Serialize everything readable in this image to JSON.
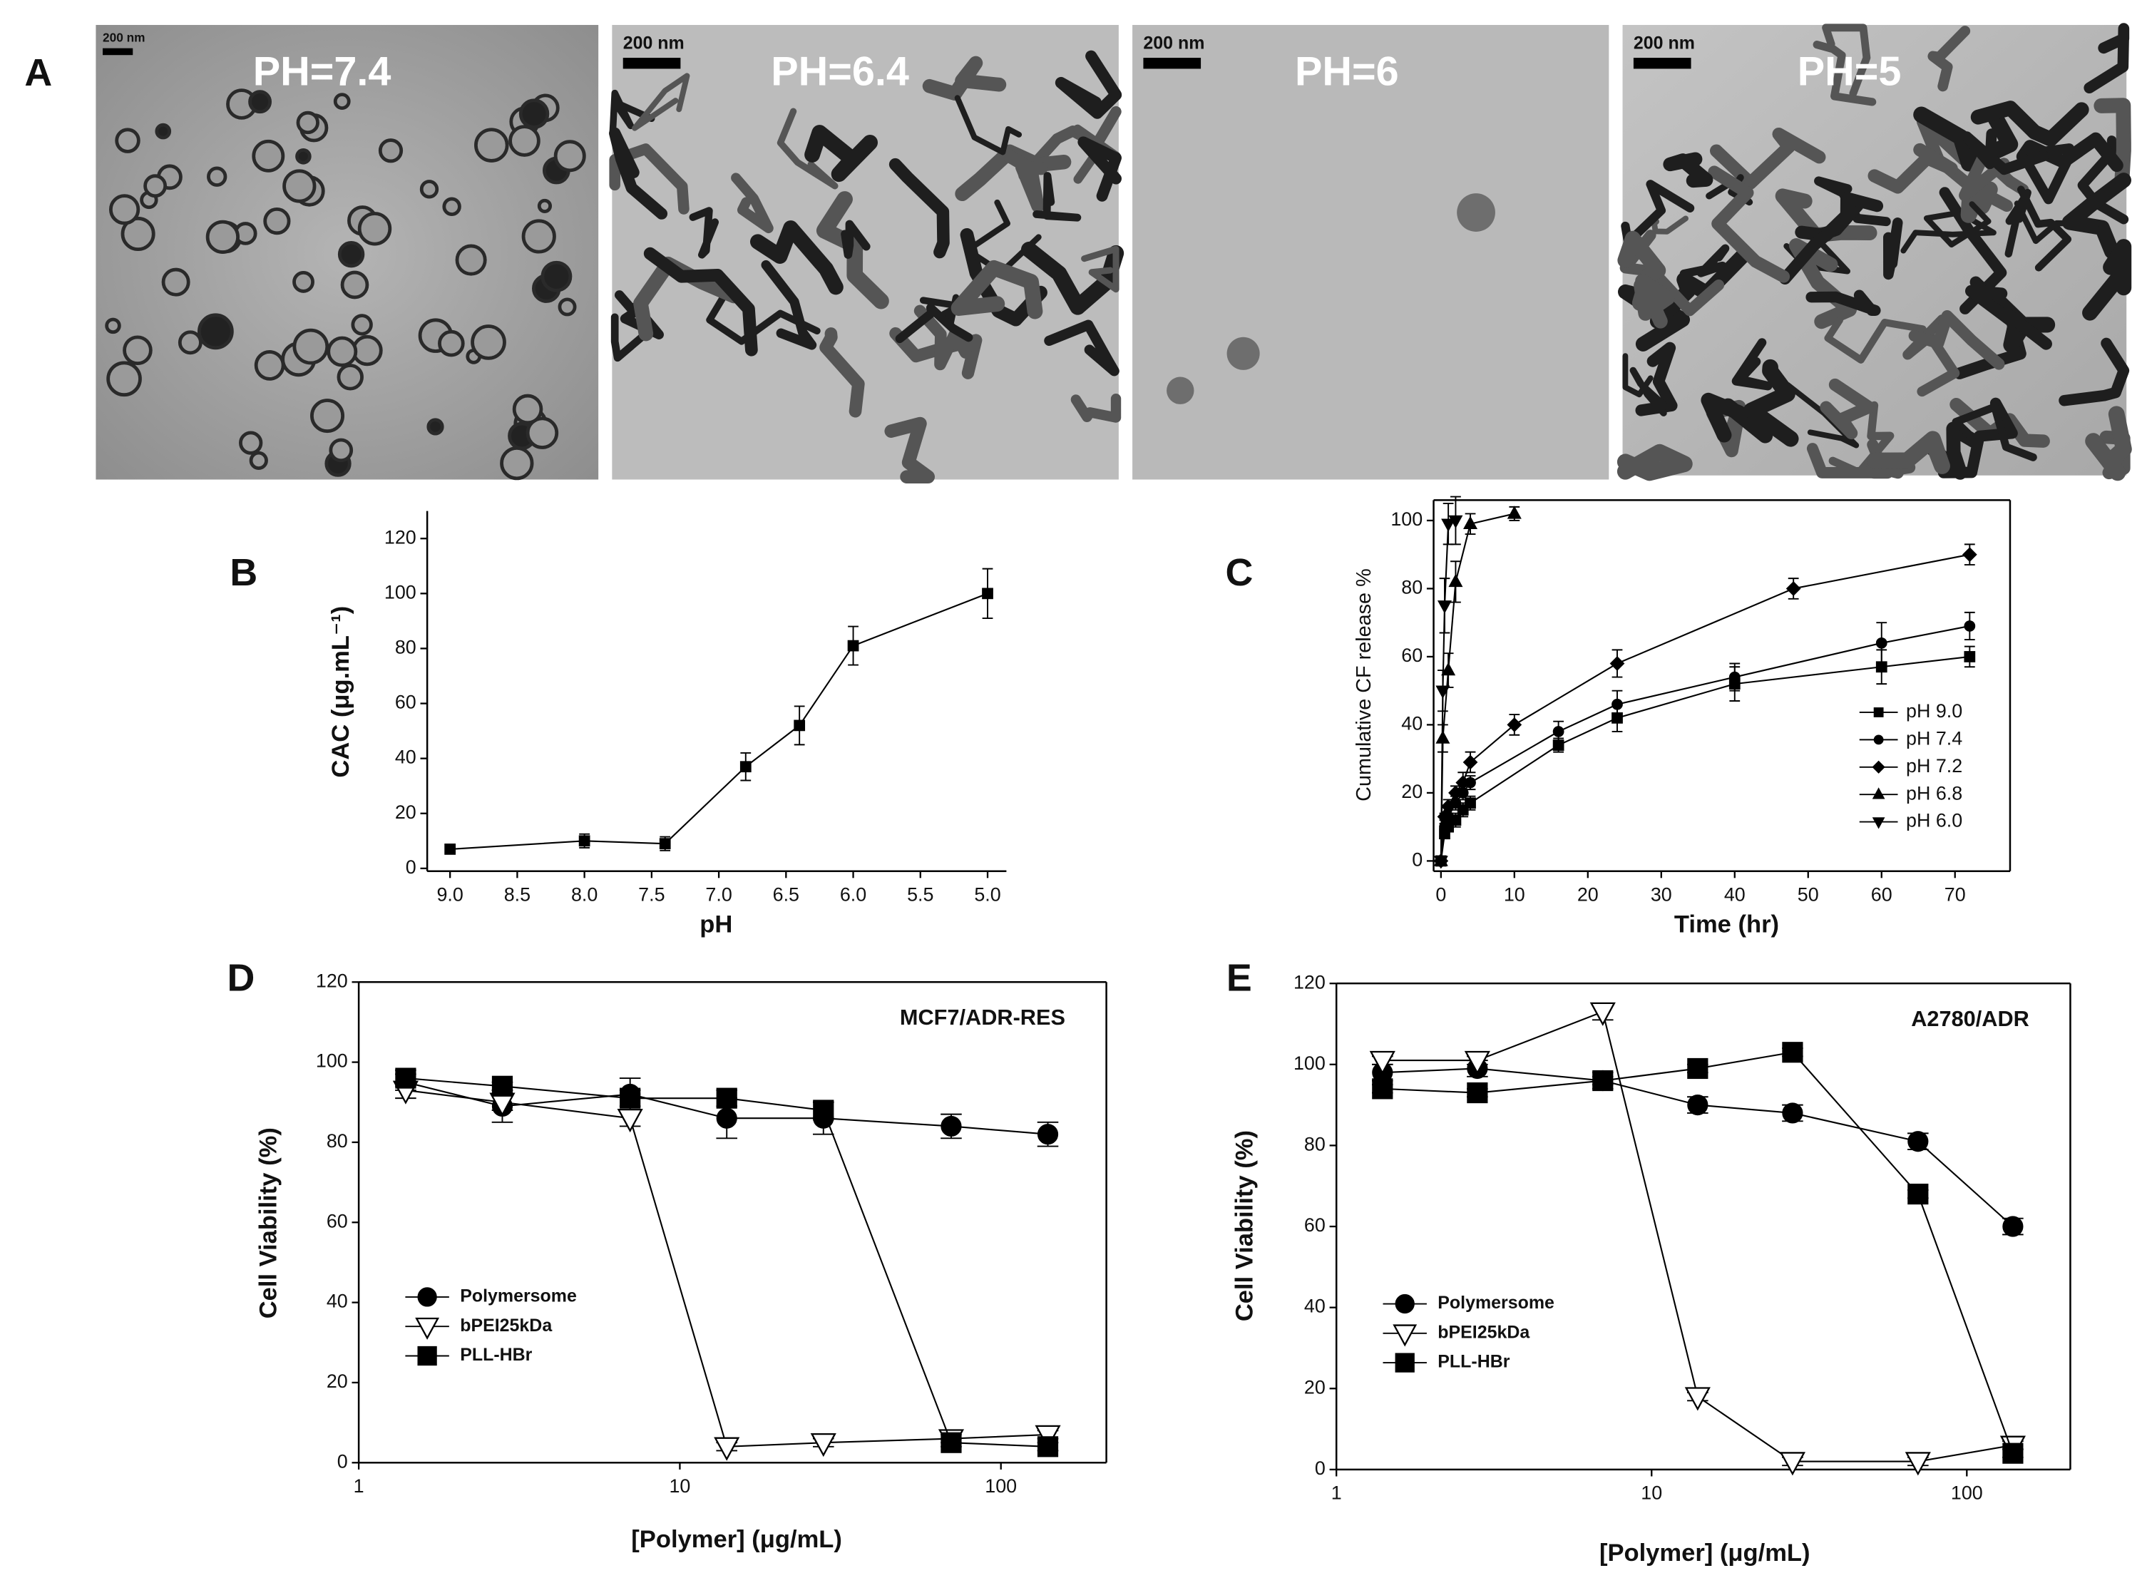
{
  "panel_a": {
    "label": "A",
    "images": [
      {
        "title": "PH=7.4",
        "scale_bar": "200 nm"
      },
      {
        "title": "PH=6.4",
        "scale_bar": "200 nm"
      },
      {
        "title": "PH=6",
        "scale_bar": "200 nm"
      },
      {
        "title": "PH=5",
        "scale_bar": "200 nm"
      }
    ]
  },
  "chart_data": [
    {
      "type": "line",
      "panel_label": "B",
      "x_label": "pH",
      "y_label": "CAC (μg.mL⁻¹)",
      "xlim": [
        9.17,
        4.86
      ],
      "ylim": [
        -1,
        130
      ],
      "xticks": [
        {
          "value": 9,
          "label": "9.0"
        },
        8.5,
        {
          "value": 8,
          "label": "8.0"
        },
        7.5,
        {
          "value": 7,
          "label": "7.0"
        },
        6.5,
        {
          "value": 6,
          "label": "6.0"
        },
        5.5,
        {
          "value": 5,
          "label": "5.0"
        }
      ],
      "yticks": [
        0,
        20,
        40,
        60,
        80,
        100,
        120
      ],
      "series": [
        {
          "color": "#000000",
          "marker": "square",
          "x": [
            9.0,
            8.0,
            7.4,
            6.8,
            6.4,
            6.0,
            5.0
          ],
          "values": [
            7,
            10,
            9,
            37,
            52,
            81,
            100
          ],
          "errors": [
            1.5,
            2.5,
            2.5,
            5,
            7,
            7,
            9
          ]
        }
      ]
    },
    {
      "type": "line",
      "panel_label": "C",
      "x_label": "Time (hr)",
      "y_label": "Cumulative CF release %",
      "xlim": [
        -1,
        77.5
      ],
      "ylim": [
        -3,
        106
      ],
      "legend": "lower-right",
      "xticks": [
        0,
        10,
        20,
        30,
        40,
        50,
        60,
        70
      ],
      "yticks": [
        0,
        20,
        40,
        60,
        80,
        100
      ],
      "series": [
        {
          "name": "pH 9.0",
          "color": "#000000",
          "marker": "square",
          "x": [
            0,
            0.5,
            1,
            2,
            3,
            4,
            16,
            24,
            40,
            60,
            72
          ],
          "values": [
            0,
            8,
            10,
            12,
            15,
            17,
            34,
            42,
            52,
            57,
            60
          ],
          "errors": [
            0,
            1,
            1,
            2,
            2,
            2,
            2,
            4,
            5,
            5,
            3
          ]
        },
        {
          "name": "pH 7.4",
          "color": "#000000",
          "marker": "circle",
          "x": [
            0,
            0.5,
            1,
            2,
            3,
            4,
            16,
            24,
            40,
            60,
            72
          ],
          "values": [
            0,
            10,
            13,
            17,
            20,
            23,
            38,
            46,
            54,
            64,
            69
          ],
          "errors": [
            0,
            1,
            1,
            2,
            2,
            2,
            3,
            4,
            4,
            6,
            4
          ]
        },
        {
          "name": "pH 7.2",
          "color": "#000000",
          "marker": "diamond",
          "x": [
            0,
            0.5,
            1,
            2,
            3,
            4,
            10,
            24,
            48,
            72
          ],
          "values": [
            0,
            13,
            16,
            20,
            23,
            29,
            40,
            58,
            80,
            90
          ],
          "errors": [
            0,
            1,
            2,
            2,
            3,
            3,
            3,
            4,
            3,
            3
          ]
        },
        {
          "name": "pH 6.8",
          "color": "#000000",
          "marker": "triangle-up",
          "x": [
            0,
            0.25,
            1,
            2,
            4,
            10
          ],
          "values": [
            0,
            36,
            56,
            82,
            99,
            102
          ],
          "errors": [
            0,
            4,
            5,
            6,
            3,
            2
          ]
        },
        {
          "name": "pH 6.0",
          "color": "#000000",
          "marker": "triangle-down",
          "x": [
            0,
            0.25,
            0.5,
            1,
            2
          ],
          "values": [
            0,
            50,
            75,
            99,
            100
          ],
          "errors": [
            0,
            6,
            8,
            6,
            7
          ]
        }
      ]
    },
    {
      "type": "line",
      "panel_label": "D",
      "x_label": "[Polymer] (μg/mL)",
      "y_label": "Cell Viability (%)",
      "annotation": "MCF7/ADR-RES",
      "xscale": "log",
      "xlim": [
        1,
        213
      ],
      "ylim": [
        0,
        120
      ],
      "legend": "lower-left",
      "xticks": [
        1,
        10,
        100
      ],
      "yticks": [
        0,
        20,
        40,
        60,
        80,
        100,
        120
      ],
      "series": [
        {
          "name": "Polymersome",
          "color": "#000000",
          "fill": "#000000",
          "marker": "circle",
          "x": [
            1.4,
            2.8,
            7,
            14,
            28,
            70,
            140
          ],
          "values": [
            95,
            89,
            92,
            86,
            86,
            84,
            82
          ],
          "errors": [
            2,
            4,
            4,
            5,
            4,
            3,
            3
          ]
        },
        {
          "name": "bPEI25kDa",
          "color": "#000000",
          "fill": "#ffffff",
          "marker": "triangle-down",
          "x": [
            1.4,
            2.8,
            7,
            14,
            28,
            70,
            140
          ],
          "values": [
            93,
            90,
            86,
            4,
            5,
            6,
            7
          ],
          "errors": [
            2,
            2,
            2,
            1,
            1,
            1,
            1
          ]
        },
        {
          "name": "PLL-HBr",
          "color": "#000000",
          "fill": "#000000",
          "marker": "square",
          "x": [
            1.4,
            2.8,
            7,
            14,
            28,
            70,
            140
          ],
          "values": [
            96,
            94,
            91,
            91,
            88,
            5,
            4
          ],
          "errors": [
            2,
            1,
            2,
            2,
            2,
            1,
            1
          ]
        }
      ]
    },
    {
      "type": "line",
      "panel_label": "E",
      "x_label": "[Polymer] (μg/mL)",
      "y_label": "Cell Viability (%)",
      "annotation": "A2780/ADR",
      "xscale": "log",
      "xlim": [
        1,
        213
      ],
      "ylim": [
        0,
        120
      ],
      "legend": "lower-left",
      "xticks": [
        1,
        10,
        100
      ],
      "yticks": [
        0,
        20,
        40,
        60,
        80,
        100,
        120
      ],
      "series": [
        {
          "name": "Polymersome",
          "color": "#000000",
          "fill": "#000000",
          "marker": "circle",
          "x": [
            1.4,
            2.8,
            7,
            14,
            28,
            70,
            140
          ],
          "values": [
            98,
            99,
            96,
            90,
            88,
            81,
            60
          ],
          "errors": [
            2,
            2,
            2,
            2,
            2,
            2,
            2
          ]
        },
        {
          "name": "bPEI25kDa",
          "color": "#000000",
          "fill": "#ffffff",
          "marker": "triangle-down",
          "x": [
            1.4,
            2.8,
            7,
            14,
            28,
            70,
            140
          ],
          "values": [
            101,
            101,
            113,
            18,
            2,
            2,
            6
          ],
          "errors": [
            1,
            1,
            2,
            1,
            1,
            1,
            1
          ]
        },
        {
          "name": "PLL-HBr",
          "color": "#000000",
          "fill": "#000000",
          "marker": "square",
          "x": [
            1.4,
            2.8,
            7,
            14,
            28,
            70,
            140
          ],
          "values": [
            94,
            93,
            96,
            99,
            103,
            68,
            4
          ],
          "errors": [
            1,
            1,
            1,
            1,
            1,
            1,
            1
          ]
        }
      ]
    }
  ]
}
